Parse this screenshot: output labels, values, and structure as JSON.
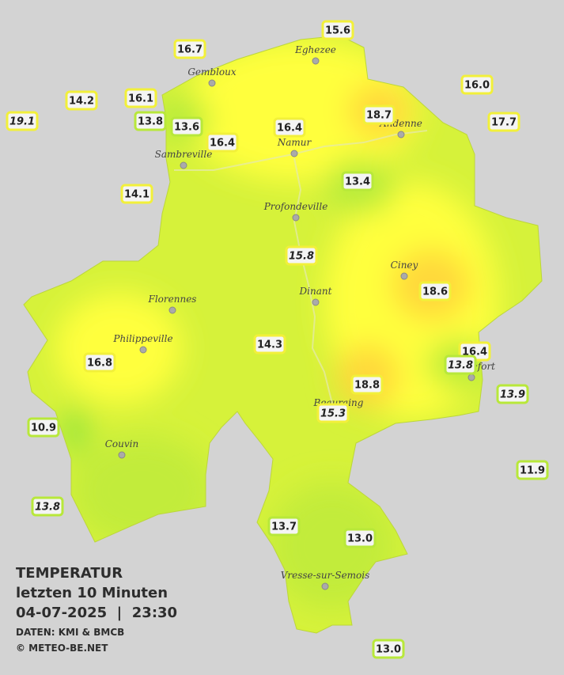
{
  "title": {
    "line1": "TEMPERATUR",
    "line2": "letzten 10 Minuten",
    "line3": "04-07-2025  |  23:30",
    "source": "DATEN: KMI & BMCB",
    "copyright": "© METEO-BE.NET"
  },
  "towns": [
    "Eghezee",
    "Gembloux",
    "Andenne",
    "Namur",
    "Sambreville",
    "Profondeville",
    "Ciney",
    "Dinant",
    "Florennes",
    "Philippeville",
    "Rochefort",
    "Beauraing",
    "Couvin",
    "Vresse-sur-Semois"
  ],
  "stations": [
    "15.6",
    "16.7",
    "16.0",
    "14.2",
    "16.1",
    "19.1",
    "13.8",
    "13.6",
    "16.4",
    "18.7",
    "17.7",
    "16.4",
    "13.4",
    "14.1",
    "15.8",
    "18.6",
    "14.3",
    "16.4",
    "16.8",
    "13.8",
    "18.8",
    "13.9",
    "15.3",
    "10.9",
    "11.9",
    "13.8",
    "13.7",
    "13.0",
    "13.0"
  ]
}
